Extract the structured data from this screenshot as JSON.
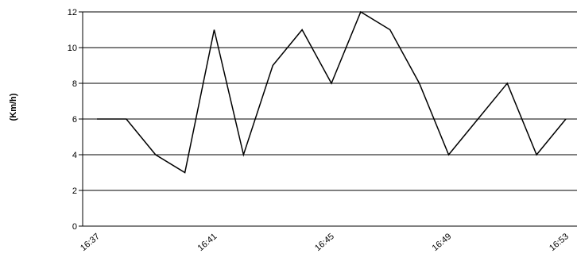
{
  "chart_data": {
    "type": "line",
    "title": "",
    "xlabel": "",
    "ylabel": "(Km/h)",
    "ylim": [
      0,
      12
    ],
    "yticks": [
      0,
      2,
      4,
      6,
      8,
      10,
      12
    ],
    "grid": "horizontal",
    "x": [
      "16:37",
      "16:38",
      "16:39",
      "16:40",
      "16:41",
      "16:42",
      "16:43",
      "16:44",
      "16:45",
      "16:46",
      "16:47",
      "16:48",
      "16:49",
      "16:50",
      "16:51",
      "16:52",
      "16:53"
    ],
    "xtick_labels": [
      "16:37",
      "16:41",
      "16:45",
      "16:49",
      "16:53"
    ],
    "series": [
      {
        "values": [
          6,
          6,
          4,
          3,
          11,
          4,
          9,
          11,
          8,
          12,
          11,
          8,
          4,
          6,
          8,
          4,
          6
        ]
      }
    ],
    "colors": {
      "line": "#000000",
      "grid": "#000000",
      "axis": "#000000"
    }
  }
}
